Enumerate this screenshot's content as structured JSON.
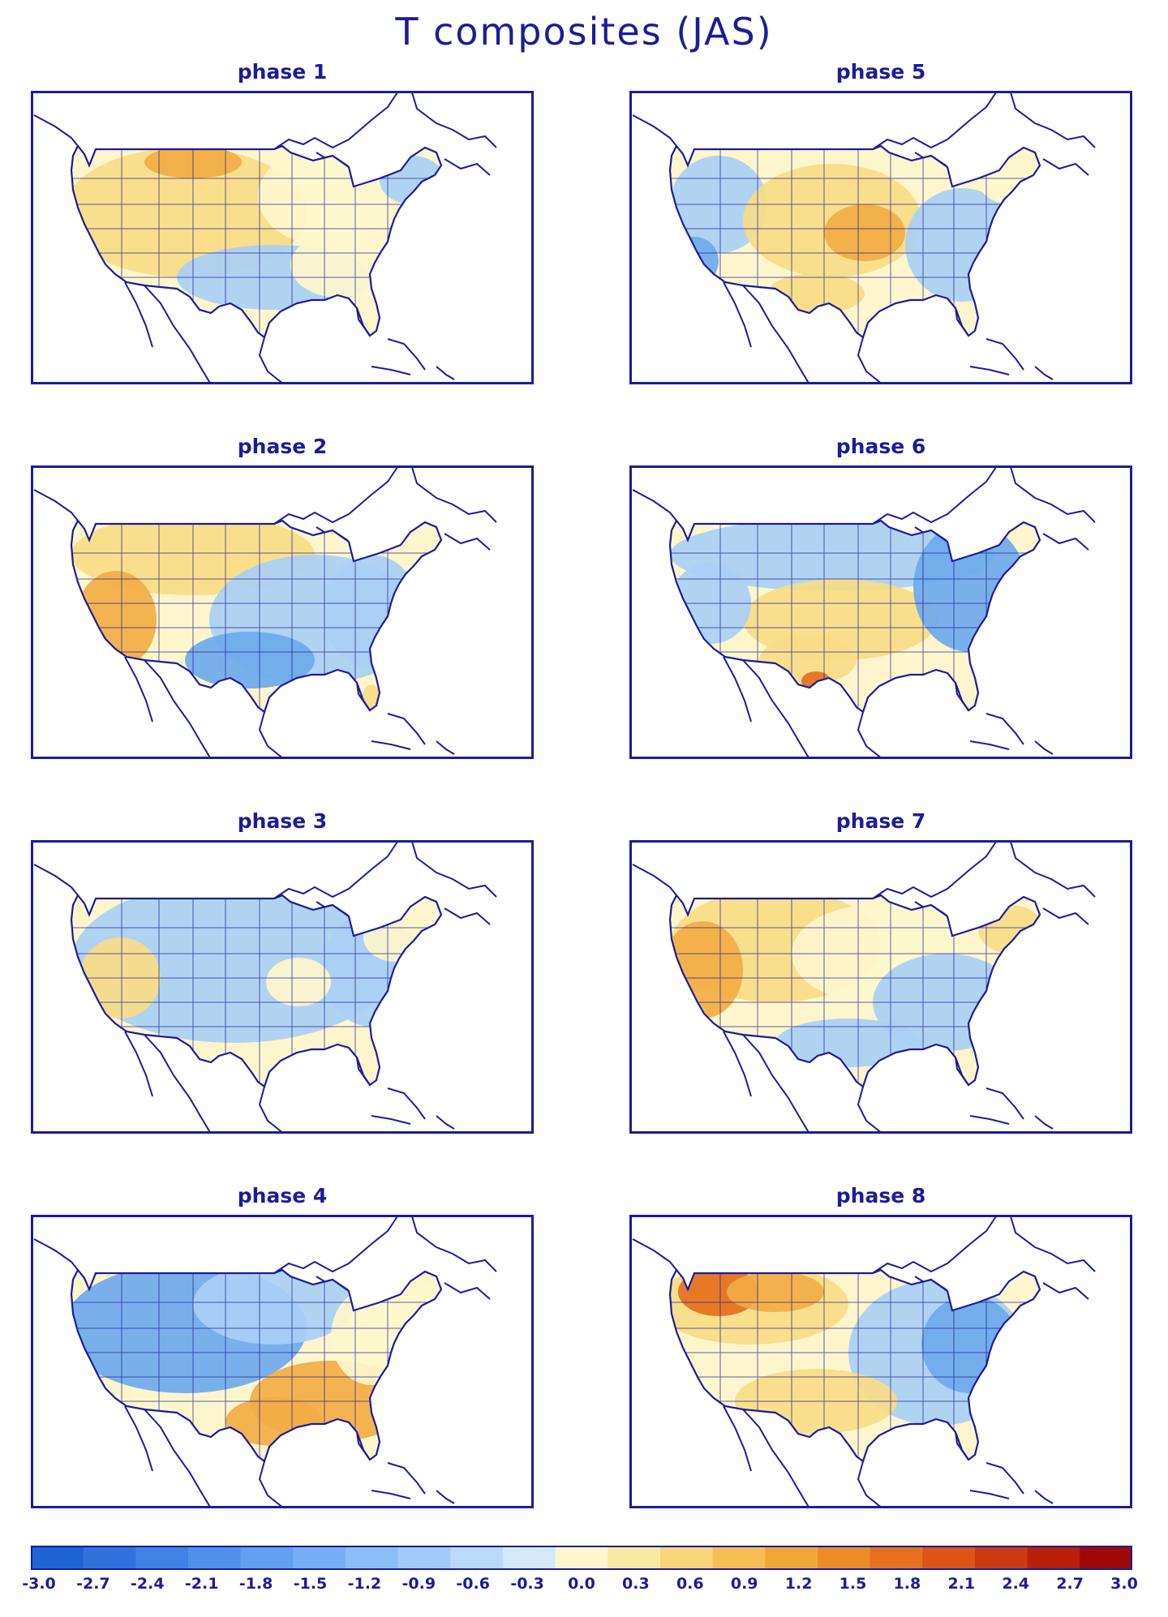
{
  "title": "T composites (JAS)",
  "panels": [
    {
      "id": "phase-1",
      "title": "phase 1",
      "tint": "warm-west-cool-south"
    },
    {
      "id": "phase-5",
      "title": "phase 5",
      "tint": "mixed-warm-central"
    },
    {
      "id": "phase-2",
      "title": "phase 2",
      "tint": "warm-west-cool-east"
    },
    {
      "id": "phase-6",
      "title": "phase 6",
      "tint": "cool-north-warm-south"
    },
    {
      "id": "phase-3",
      "title": "phase 3",
      "tint": "cool"
    },
    {
      "id": "phase-7",
      "title": "phase 7",
      "tint": "warm-west-mixed"
    },
    {
      "id": "phase-4",
      "title": "phase 4",
      "tint": "cool-west-warm-southeast"
    },
    {
      "id": "phase-8",
      "title": "phase 8",
      "tint": "hot-northwest-cool-east"
    }
  ],
  "colorbar": {
    "labels": [
      "-3.0",
      "-2.7",
      "-2.4",
      "-2.1",
      "-1.8",
      "-1.5",
      "-1.2",
      "-0.9",
      "-0.6",
      "-0.3",
      "0.0",
      "0.3",
      "0.6",
      "0.9",
      "1.2",
      "1.5",
      "1.8",
      "2.1",
      "2.4",
      "2.7",
      "3.0"
    ],
    "colors": [
      "#1f64d4",
      "#2e73dd",
      "#3d82e4",
      "#4f91ea",
      "#62a0ef",
      "#76aff3",
      "#8cbef6",
      "#a2ccf8",
      "#b9dafa",
      "#d2e9fc",
      "#fdf6cc",
      "#fbe8a2",
      "#f8d57a",
      "#f5bf55",
      "#f1a63a",
      "#ec8c29",
      "#e5711e",
      "#db5516",
      "#cc3a10",
      "#b8200b",
      "#9e0a07"
    ]
  },
  "colors": {
    "outline": "#1c1c99",
    "cool": "#a9cff5",
    "cool_deep": "#6ea9ec",
    "neutral": "#fdf6cc",
    "warm": "#f8dc86",
    "warm_deep": "#f2ad45",
    "hot": "#e4701e"
  }
}
